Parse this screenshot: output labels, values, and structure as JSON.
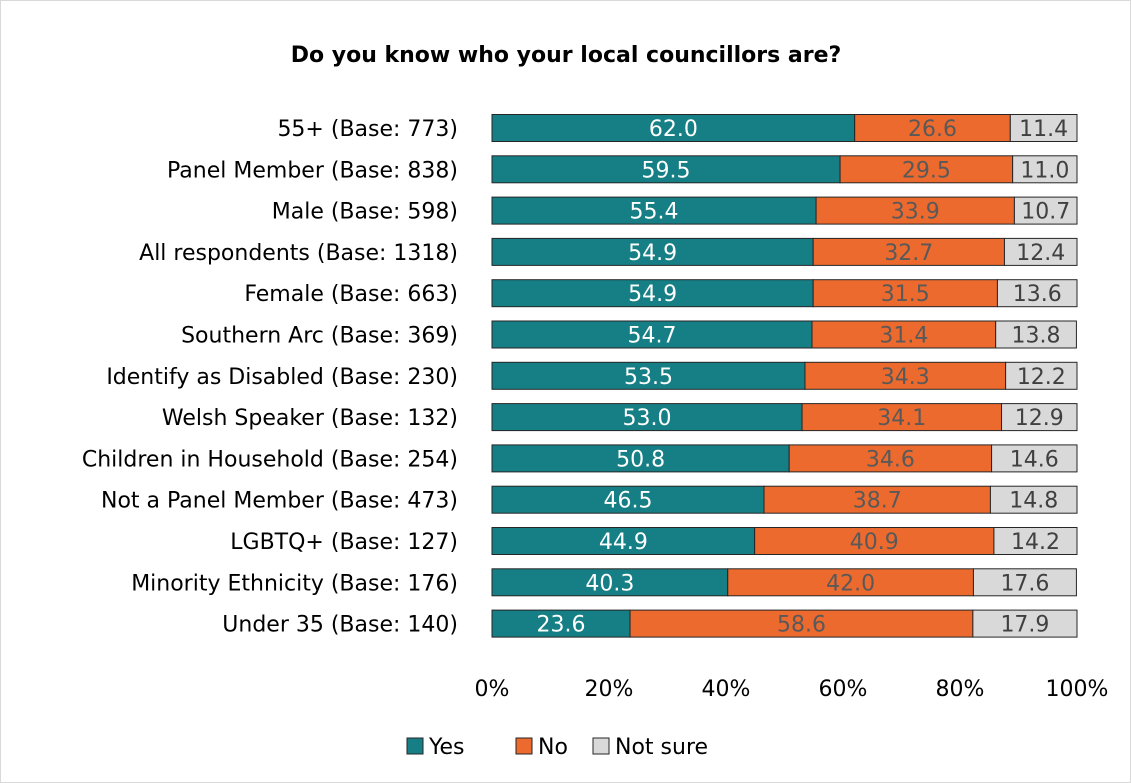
{
  "chart_data": {
    "type": "bar",
    "orientation": "horizontal",
    "stacked": true,
    "title": "Do you know who your local councillors are?",
    "categories": [
      "55+ (Base: 773)",
      "Panel Member (Base: 838)",
      "Male (Base: 598)",
      "All respondents (Base: 1318)",
      "Female (Base: 663)",
      "Southern Arc (Base: 369)",
      "Identify as Disabled (Base: 230)",
      "Welsh Speaker (Base: 132)",
      "Children in Household (Base: 254)",
      "Not a Panel Member (Base: 473)",
      "LGBTQ+ (Base: 127)",
      "Minority Ethnicity (Base: 176)",
      "Under 35 (Base: 140)"
    ],
    "series": [
      {
        "name": "Yes",
        "color": "#157F85",
        "label_color": "#ffffff",
        "values": [
          62.0,
          59.5,
          55.4,
          54.9,
          54.9,
          54.7,
          53.5,
          53.0,
          50.8,
          46.5,
          44.9,
          40.3,
          23.6
        ],
        "labels": [
          "62.0",
          "59.5",
          "55.4",
          "54.9",
          "54.9",
          "54.7",
          "53.5",
          "53.0",
          "50.8",
          "46.5",
          "44.9",
          "40.3",
          "23.6"
        ]
      },
      {
        "name": "No",
        "color": "#ED6A2E",
        "label_color": "#595959",
        "values": [
          26.6,
          29.5,
          33.9,
          32.7,
          31.5,
          31.4,
          34.3,
          34.1,
          34.6,
          38.7,
          40.9,
          42.0,
          58.6
        ],
        "labels": [
          "26.6",
          "29.5",
          "33.9",
          "32.7",
          "31.5",
          "31.4",
          "34.3",
          "34.1",
          "34.6",
          "38.7",
          "40.9",
          "42.0",
          "58.6"
        ]
      },
      {
        "name": "Not sure",
        "color": "#D9D9D9",
        "label_color": "#404040",
        "values": [
          11.4,
          11.0,
          10.7,
          12.4,
          13.6,
          13.8,
          12.2,
          12.9,
          14.6,
          14.8,
          14.2,
          17.6,
          17.9
        ],
        "labels": [
          "11.4",
          "11.0",
          "10.7",
          "12.4",
          "13.6",
          "13.8",
          "12.2",
          "12.9",
          "14.6",
          "14.8",
          "14.2",
          "17.6",
          "17.9"
        ]
      }
    ],
    "xlim": [
      0,
      100
    ],
    "x_ticks": [
      "0%",
      "20%",
      "40%",
      "60%",
      "80%",
      "100%"
    ],
    "x_tick_values": [
      0,
      20,
      40,
      60,
      80,
      100
    ],
    "grid": false,
    "legend_position": "bottom"
  }
}
